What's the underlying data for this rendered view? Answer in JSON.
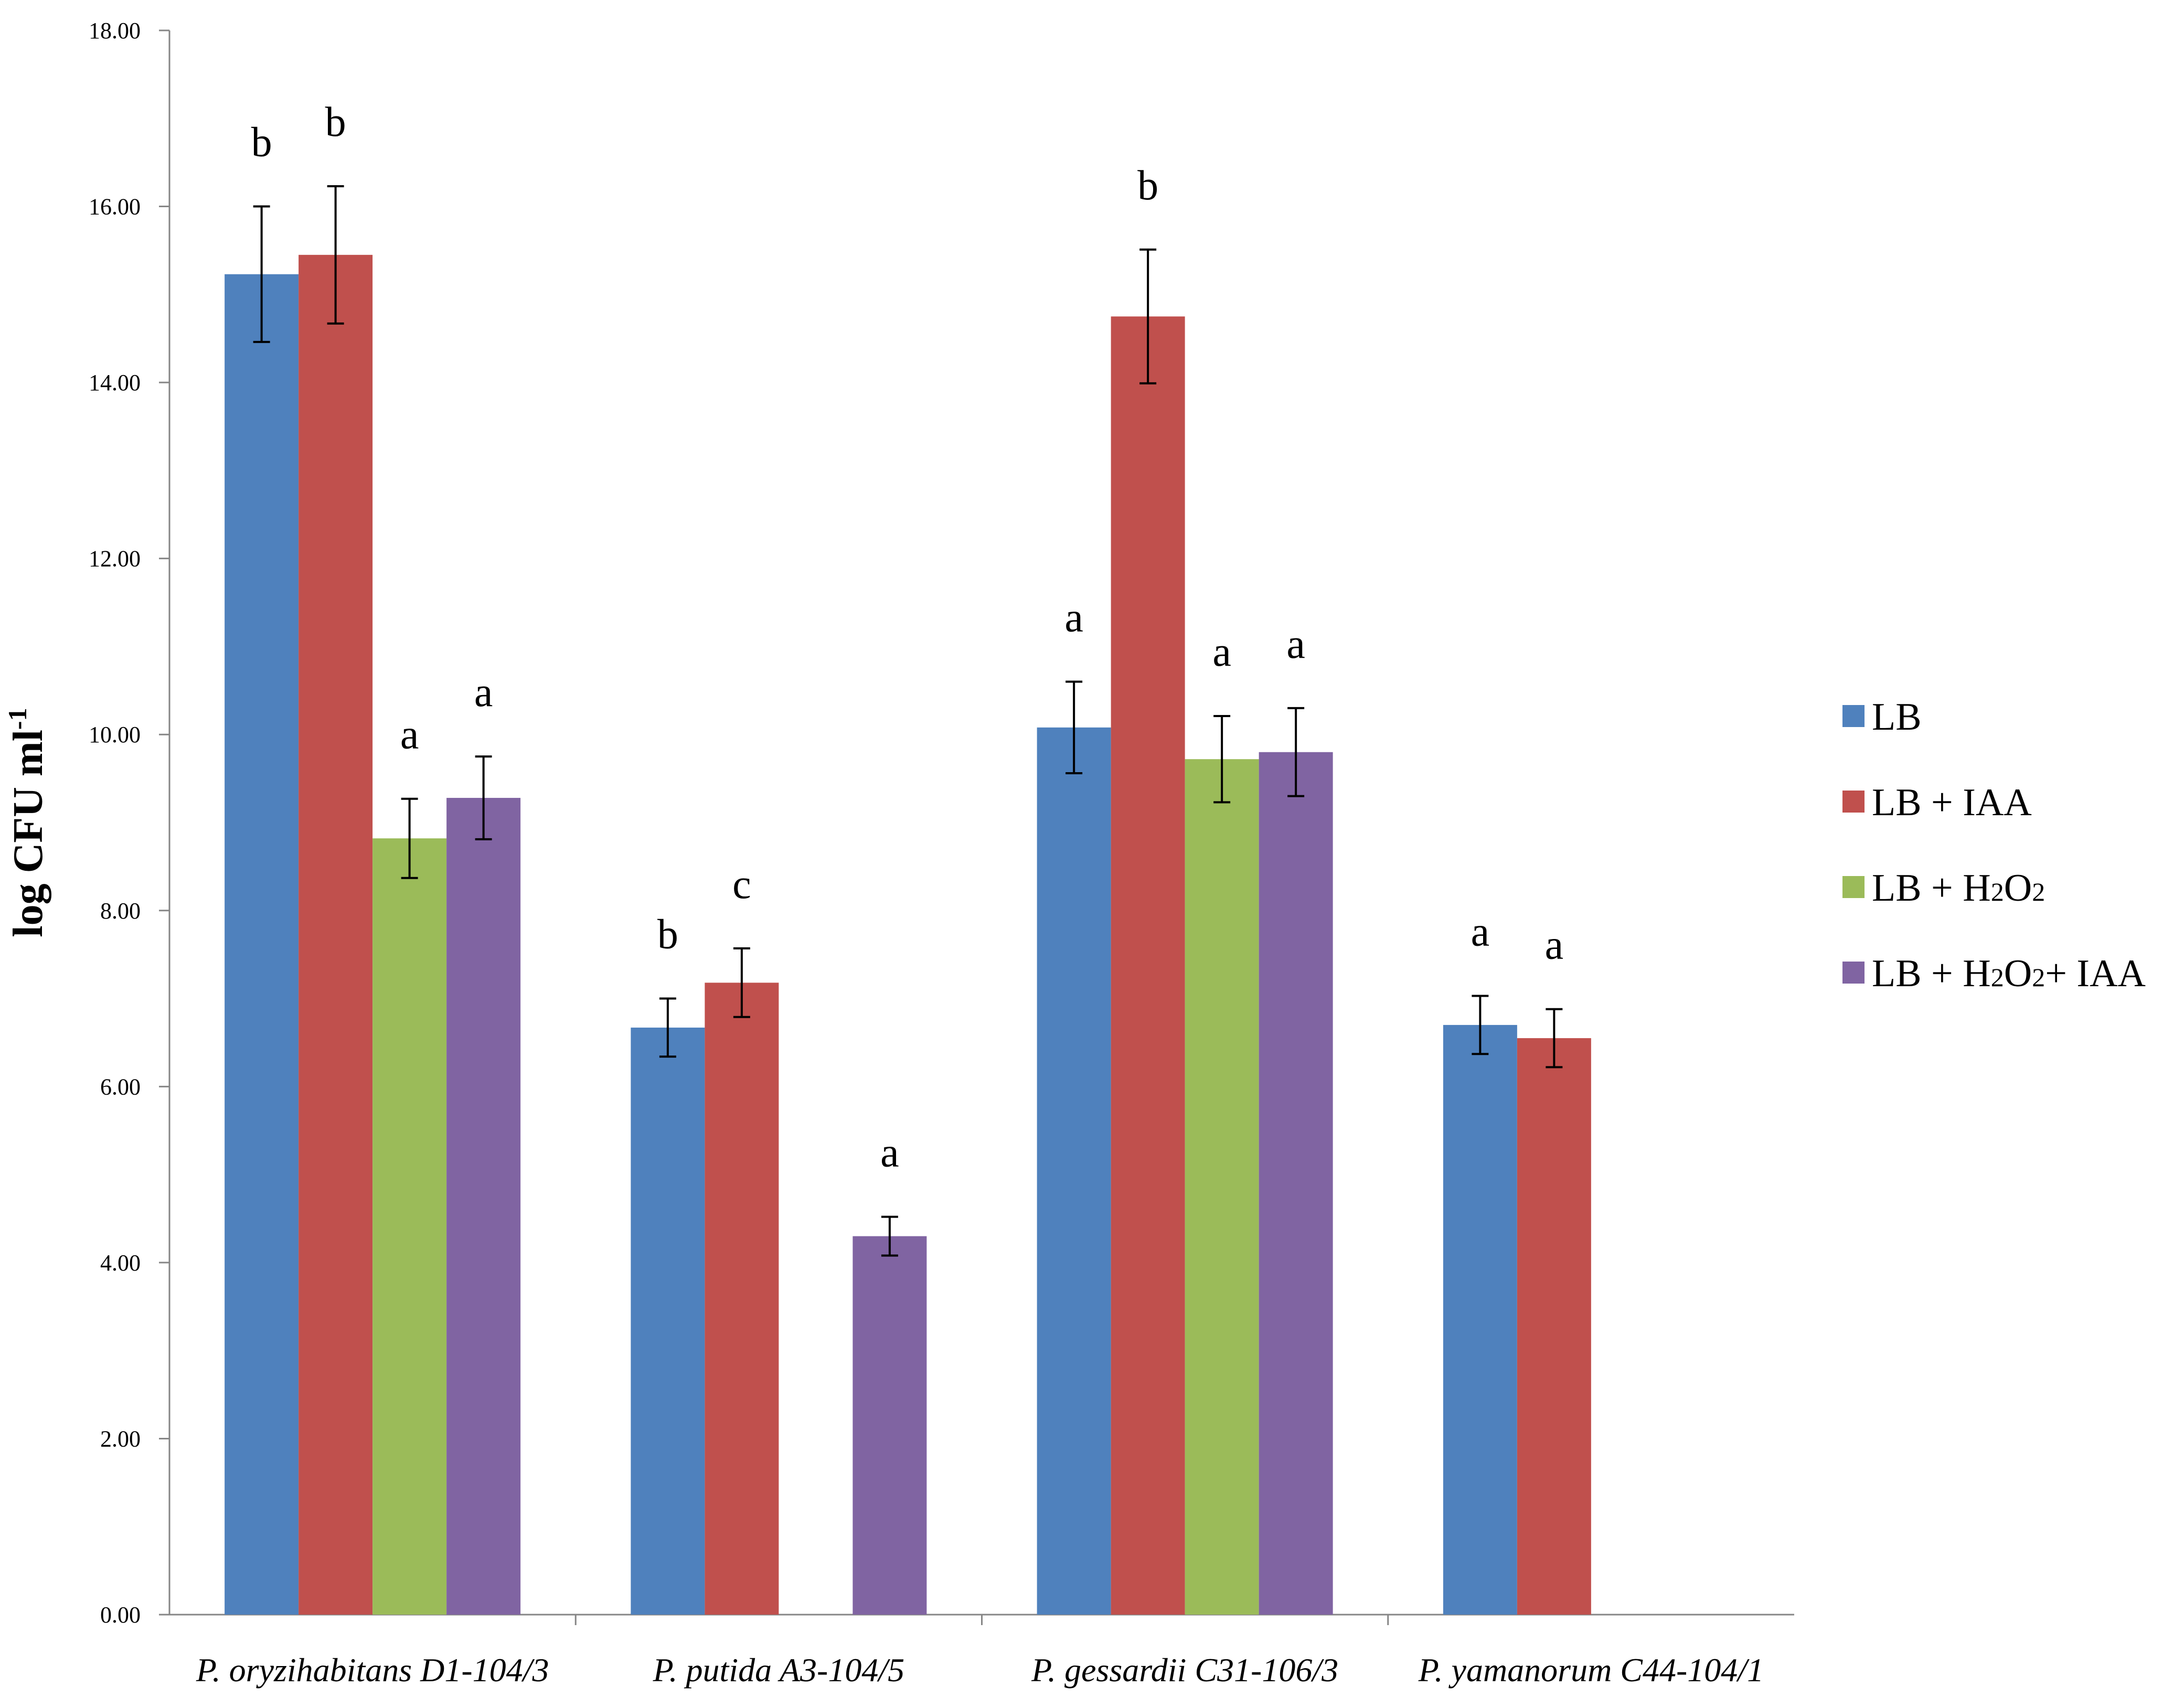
{
  "chart_data": {
    "type": "bar",
    "title": "",
    "xlabel": "",
    "ylabel": {
      "main": "log CFU ml",
      "superscript": "-1"
    },
    "ylim": [
      0,
      18
    ],
    "ytick_step": 2,
    "ytick_labels": [
      "0.00",
      "2.00",
      "4.00",
      "6.00",
      "8.00",
      "10.00",
      "12.00",
      "14.00",
      "16.00",
      "18.00"
    ],
    "grid": false,
    "legend_position": "right",
    "categories": [
      "P. oryzihabitans D1-104/3",
      "P. putida A3-104/5",
      "P. gessardii C31-106/3",
      "P. yamanorum C44-104/1"
    ],
    "series": [
      {
        "name": "LB",
        "legend_parts": [
          {
            "t": "LB"
          }
        ],
        "color": "#4f81bd",
        "values": [
          15.23,
          6.67,
          10.08,
          6.7
        ],
        "errors": [
          0.77,
          0.33,
          0.52,
          0.33
        ],
        "letters": [
          "b",
          "b",
          "a",
          "a"
        ]
      },
      {
        "name": "LB + IAA",
        "legend_parts": [
          {
            "t": "LB + IAA"
          }
        ],
        "color": "#c0504d",
        "values": [
          15.45,
          7.18,
          14.75,
          6.55
        ],
        "errors": [
          0.78,
          0.39,
          0.76,
          0.33
        ],
        "letters": [
          "b",
          "c",
          "b",
          "a"
        ]
      },
      {
        "name": "LB + H2O2",
        "legend_parts": [
          {
            "t": "LB + H"
          },
          {
            "t": "2",
            "sub": true
          },
          {
            "t": "O"
          },
          {
            "t": "2",
            "sub": true
          }
        ],
        "color": "#9bbb59",
        "values": [
          8.82,
          null,
          9.72,
          null
        ],
        "errors": [
          0.45,
          null,
          0.49,
          null
        ],
        "letters": [
          "a",
          null,
          "a",
          null
        ]
      },
      {
        "name": "LB + H2O2+ IAA",
        "legend_parts": [
          {
            "t": "LB + H"
          },
          {
            "t": "2",
            "sub": true
          },
          {
            "t": "O"
          },
          {
            "t": "2",
            "sub": true
          },
          {
            "t": "+ IAA"
          }
        ],
        "color": "#8064a2",
        "values": [
          9.28,
          null,
          9.8,
          null
        ],
        "errors": [
          0.47,
          null,
          0.5,
          null
        ],
        "extra": {
          "1": {
            "value": 4.3,
            "error": 0.22,
            "letter": "a"
          }
        },
        "letters": [
          "a",
          null,
          "a",
          null
        ]
      }
    ]
  }
}
